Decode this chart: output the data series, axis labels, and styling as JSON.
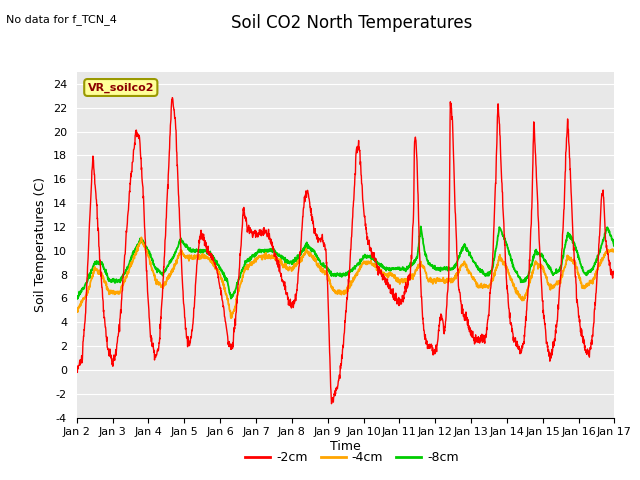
{
  "title": "Soil CO2 North Temperatures",
  "subtitle": "No data for f_TCN_4",
  "ylabel": "Soil Temperatures (C)",
  "xlabel": "Time",
  "xlim": [
    0,
    15
  ],
  "ylim": [
    -4,
    25
  ],
  "yticks": [
    -4,
    -2,
    0,
    2,
    4,
    6,
    8,
    10,
    12,
    14,
    16,
    18,
    20,
    22,
    24
  ],
  "xtick_labels": [
    "Jan 2",
    "Jan 3",
    "Jan 4",
    "Jan 5",
    "Jan 6",
    "Jan 7",
    "Jan 8",
    "Jan 9",
    "Jan 10",
    "Jan 11",
    "Jan 12",
    "Jan 13",
    "Jan 14",
    "Jan 15",
    "Jan 16",
    "Jan 17"
  ],
  "xtick_positions": [
    0,
    1,
    2,
    3,
    4,
    5,
    6,
    7,
    8,
    9,
    10,
    11,
    12,
    13,
    14,
    15
  ],
  "legend_label": "VR_soilco2",
  "legend_box_color": "#ffff99",
  "legend_box_edge": "#999900",
  "series_labels": [
    "-2cm",
    "-4cm",
    "-8cm"
  ],
  "series_colors": [
    "#ff0000",
    "#ffa500",
    "#00cc00"
  ],
  "background_color": "#e8e8e8",
  "grid_color": "#ffffff",
  "fig_bg_color": "#ffffff",
  "title_fontsize": 12,
  "tick_fontsize": 8,
  "label_fontsize": 9
}
